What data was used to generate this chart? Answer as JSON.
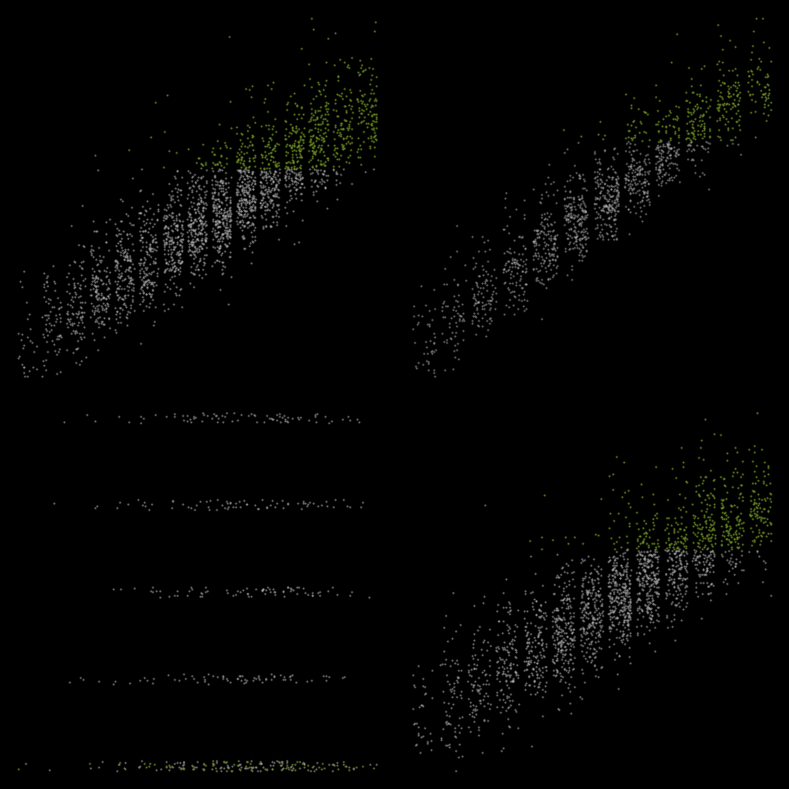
{
  "background_color": "#000000",
  "gray_color": "#b8b8b8",
  "green_color": "#6b8e23",
  "point_size": 2.5,
  "alpha_gray": 0.6,
  "alpha_green": 0.85
}
